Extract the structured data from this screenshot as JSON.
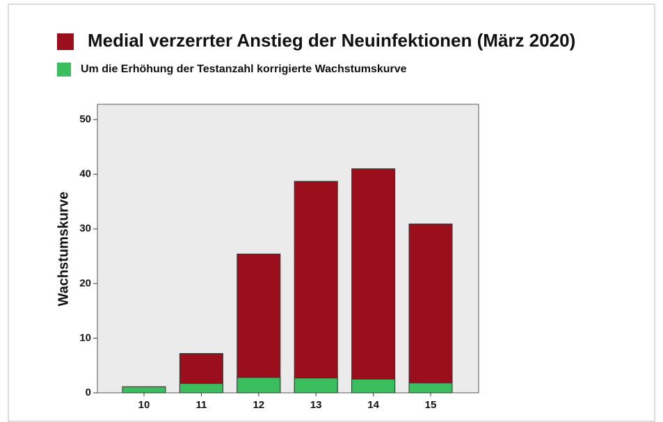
{
  "chart_data": {
    "type": "bar",
    "y_label": "Wachstumskurve",
    "categories": [
      "10",
      "11",
      "12",
      "13",
      "14",
      "15"
    ],
    "series": [
      {
        "name": "Medial verzerrter Anstieg der Neuinfektionen (März 2020)",
        "color": "#9b0e1b",
        "values": [
          1.1,
          7.2,
          25.4,
          38.7,
          41,
          30.9
        ]
      },
      {
        "name": "Um die Erhöhung der Testanzahl korrigierte Wachstumskurve",
        "color": "#3bbf5e",
        "values": [
          1.1,
          1.7,
          2.8,
          2.7,
          2.5,
          1.8
        ]
      }
    ],
    "ylim": [
      0,
      52.8
    ],
    "yticks": [
      0,
      10,
      20,
      30,
      40,
      50
    ],
    "grid": false
  }
}
